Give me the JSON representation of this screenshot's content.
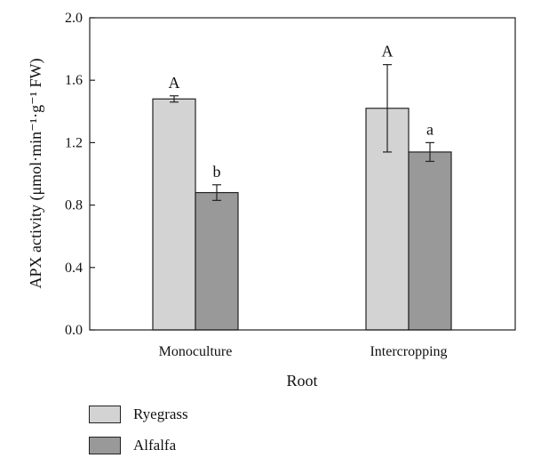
{
  "chart_data": {
    "type": "bar",
    "categories": [
      "Monoculture",
      "Intercropping"
    ],
    "xlabel": "Root",
    "ylabel": "APX activity (μmol·min⁻¹·g⁻¹ FW)",
    "ylim": [
      0.0,
      2.0
    ],
    "yticks": [
      "0.0",
      "0.4",
      "0.8",
      "1.2",
      "1.6",
      "2.0"
    ],
    "legend_position": "bottom-left",
    "grid": false,
    "series": [
      {
        "name": "Ryegrass",
        "color": "#d3d3d3",
        "values": [
          1.48,
          1.42
        ],
        "errors": [
          0.02,
          0.28
        ],
        "labels": [
          "A",
          "A"
        ]
      },
      {
        "name": "Alfalfa",
        "color": "#999999",
        "values": [
          0.88,
          1.14
        ],
        "errors": [
          0.05,
          0.06
        ],
        "labels": [
          "b",
          "a"
        ]
      }
    ]
  }
}
